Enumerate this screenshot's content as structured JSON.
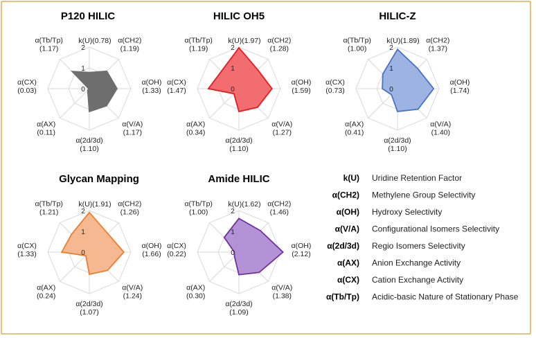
{
  "chart_data": [
    {
      "type": "radar",
      "title": "P120 HILIC",
      "color": "#6e6e6e",
      "fill": "#6e6e6e",
      "fill_opacity": 1,
      "axes": [
        "k(U)",
        "α(CH2)",
        "α(OH)",
        "α(V/A)",
        "α(2d/3d)",
        "α(AX)",
        "α(CX)",
        "α(Tb/Tp)"
      ],
      "values": [
        0.78,
        1.19,
        1.33,
        1.17,
        1.1,
        0.11,
        0.03,
        1.17
      ],
      "labels": [
        "k(U)(0.78)",
        "α(CH2)\n(1.19)",
        "α(OH)\n(1.33)",
        "α(V/A)\n(1.17)",
        "α(2d/3d)\n(1.10)",
        "α(AX)\n(0.11)",
        "α(CX)\n(0.03)",
        "α(Tb/Tp)\n(1.17)"
      ],
      "ticks": [
        "0",
        "1",
        "2"
      ],
      "rmax": 2
    },
    {
      "type": "radar",
      "title": "HILIC OH5",
      "color": "#e8191f",
      "fill": "#f26d70",
      "fill_opacity": 1,
      "axes": [
        "k(U)",
        "α(CH2)",
        "α(OH)",
        "α(V/A)",
        "α(2d/3d)",
        "α(AX)",
        "α(CX)",
        "α(Tb/Tp)"
      ],
      "values": [
        1.97,
        1.28,
        1.59,
        1.27,
        1.1,
        0.34,
        1.47,
        1.19
      ],
      "labels": [
        "k(U)(1.97)",
        "α(CH2)\n(1.28)",
        "α(OH)\n(1.59)",
        "α(V/A)\n(1.27)",
        "α(2d/3d)\n(1.10)",
        "α(AX)\n(0.34)",
        "α(CX)\n(1.47)",
        "α(Tb/Tp)\n(1.19)"
      ],
      "ticks": [
        "0",
        "1",
        "2"
      ],
      "rmax": 2
    },
    {
      "type": "radar",
      "title": "HILIC-Z",
      "color": "#4a72c4",
      "fill": "#9db4e3",
      "fill_opacity": 1,
      "axes": [
        "k(U)",
        "α(CH2)",
        "α(OH)",
        "α(V/A)",
        "α(2d/3d)",
        "α(AX)",
        "α(CX)",
        "α(Tb/Tp)"
      ],
      "values": [
        1.89,
        1.37,
        1.74,
        1.4,
        1.1,
        0.41,
        0.73,
        1.0
      ],
      "labels": [
        "k(U)(1.89)",
        "α(CH2)\n(1.37)",
        "α(OH)\n(1.74)",
        "α(V/A)\n(1.40)",
        "α(2d/3d)\n(1.10)",
        "α(AX)\n(0.41)",
        "α(CX)\n(0.73)",
        "α(Tb/Tp)\n(1.00)"
      ],
      "ticks": [
        "0",
        "1",
        "2"
      ],
      "rmax": 2
    },
    {
      "type": "radar",
      "title": "Glycan Mapping",
      "color": "#ed7d31",
      "fill": "#f6b890",
      "fill_opacity": 1,
      "axes": [
        "k(U)",
        "α(CH2)",
        "α(OH)",
        "α(V/A)",
        "α(2d/3d)",
        "α(AX)",
        "α(CX)",
        "α(Tb/Tp)"
      ],
      "values": [
        1.91,
        1.26,
        1.66,
        1.24,
        1.07,
        0.24,
        1.33,
        1.21
      ],
      "labels": [
        "k(U)(1.91)",
        "α(CH2)\n(1.26)",
        "α(OH)\n(1.66)",
        "α(V/A)\n(1.24)",
        "α(2d/3d)\n(1.07)",
        "α(AX)\n(0.24)",
        "α(CX)\n(1.33)",
        "α(Tb/Tp)\n(1.21)"
      ],
      "ticks": [
        "0",
        "1",
        "2"
      ],
      "rmax": 2
    },
    {
      "type": "radar",
      "title": "Amide HILIC",
      "color": "#7030a0",
      "fill": "#b392d6",
      "fill_opacity": 1,
      "axes": [
        "k(U)",
        "α(CH2)",
        "α(OH)",
        "α(V/A)",
        "α(2d/3d)",
        "α(AX)",
        "α(CX)",
        "α(Tb/Tp)"
      ],
      "values": [
        1.62,
        1.46,
        2.12,
        1.38,
        1.09,
        0.3,
        0.22,
        1.0
      ],
      "labels": [
        "k(U)(1.62)",
        "α(CH2)\n(1.46)",
        "α(OH)\n(2.12)",
        "α(V/A)\n(1.38)",
        "α(2d/3d)\n(1.09)",
        "α(AX)\n(0.30)",
        "α(CX)\n(0.22)",
        "α(Tb/Tp)\n(1.00)"
      ],
      "ticks": [
        "0",
        "1",
        "2"
      ],
      "rmax": 2
    }
  ],
  "legend": [
    {
      "key": "k(U)",
      "desc": "Uridine Retention Factor"
    },
    {
      "key": "α(CH2)",
      "desc": "Methylene Group Selectivity"
    },
    {
      "key": "α(OH)",
      "desc": "Hydroxy Selectivity"
    },
    {
      "key": "α(V/A)",
      "desc": "Configurational Isomers Selectivity"
    },
    {
      "key": "α(2d/3d)",
      "desc": "Regio Isomers Selectivity"
    },
    {
      "key": "α(AX)",
      "desc": "Anion Exchange Activity"
    },
    {
      "key": "α(CX)",
      "desc": "Cation Exchange Activity"
    },
    {
      "key": "α(Tb/Tp)",
      "desc": "Acidic-basic Nature of Stationary Phase"
    }
  ]
}
